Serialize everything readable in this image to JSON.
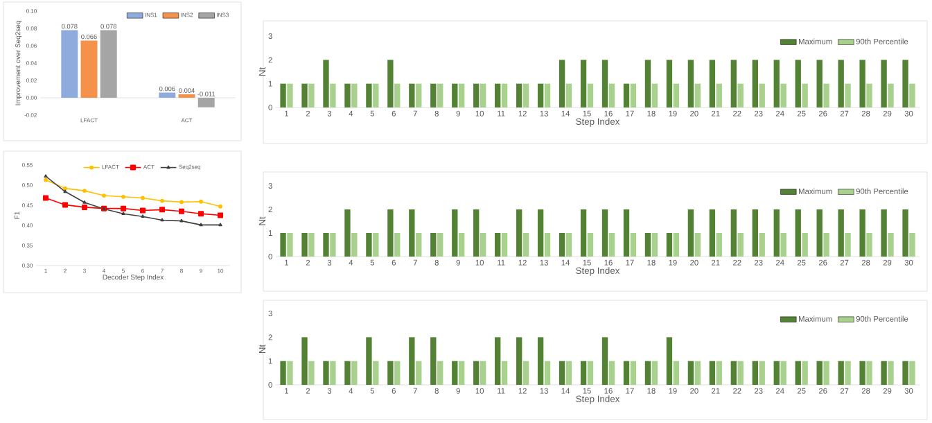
{
  "chart_data": [
    {
      "type": "bar",
      "ylabel": "Improvement over Seq2seq",
      "categories": [
        "LFACT",
        "ACT"
      ],
      "series": [
        {
          "name": "INS1",
          "color": "#8faadc",
          "values": [
            0.078,
            0.006
          ]
        },
        {
          "name": "INS2",
          "color": "#f4914a",
          "values": [
            0.066,
            0.004
          ]
        },
        {
          "name": "INS3",
          "color": "#a5a5a5",
          "values": [
            0.078,
            -0.011
          ]
        }
      ],
      "ylim": [
        -0.02,
        0.1
      ],
      "yticks": [
        {
          "value": -0.02,
          "label": "-0.02"
        },
        {
          "value": 0,
          "label": "0.00"
        },
        {
          "value": 0.02,
          "label": "0.02"
        },
        {
          "value": 0.04,
          "label": "0.04"
        },
        {
          "value": 0.06,
          "label": "0.06"
        },
        {
          "value": 0.08,
          "label": "0.08"
        },
        {
          "value": 0.1,
          "label": "0.10"
        }
      ],
      "data_labels": true,
      "legend": "top right"
    },
    {
      "type": "line",
      "xlabel": "Decoder Step Index",
      "ylabel": "F1",
      "categories": [
        "1",
        "2",
        "3",
        "4",
        "5",
        "6",
        "7",
        "8",
        "9",
        "10"
      ],
      "series": [
        {
          "name": "LFACT",
          "color": "#ffc000",
          "marker": "circle",
          "values": [
            0.513,
            0.492,
            0.486,
            0.474,
            0.471,
            0.468,
            0.461,
            0.458,
            0.459,
            0.447
          ]
        },
        {
          "name": "ACT",
          "color": "#ff0000",
          "marker": "square",
          "values": [
            0.468,
            0.451,
            0.445,
            0.442,
            0.442,
            0.437,
            0.439,
            0.435,
            0.429,
            0.425
          ]
        },
        {
          "name": "Seq2seq",
          "color": "#404040",
          "marker": "triangle",
          "values": [
            0.522,
            0.484,
            0.457,
            0.441,
            0.429,
            0.422,
            0.413,
            0.411,
            0.401,
            0.401
          ]
        }
      ],
      "ylim": [
        0.3,
        0.55
      ],
      "yticks": [
        {
          "value": 0.3,
          "label": "0.30"
        },
        {
          "value": 0.35,
          "label": "0.35"
        },
        {
          "value": 0.4,
          "label": "0.40"
        },
        {
          "value": 0.45,
          "label": "0.45"
        },
        {
          "value": 0.5,
          "label": "0.50"
        },
        {
          "value": 0.55,
          "label": "0.55"
        }
      ],
      "legend": "top"
    },
    {
      "type": "bar",
      "xlabel": "Step Index",
      "ylabel": "Nt",
      "categories": [
        "1",
        "2",
        "3",
        "4",
        "5",
        "6",
        "7",
        "8",
        "9",
        "10",
        "11",
        "12",
        "13",
        "14",
        "15",
        "16",
        "17",
        "18",
        "19",
        "20",
        "21",
        "22",
        "23",
        "24",
        "25",
        "26",
        "27",
        "28",
        "29",
        "30"
      ],
      "series": [
        {
          "name": "Maximum",
          "color": "#548235",
          "values": [
            1,
            1,
            2,
            1,
            1,
            2,
            1,
            1,
            1,
            1,
            1,
            1,
            1,
            2,
            2,
            2,
            1,
            2,
            2,
            2,
            2,
            2,
            2,
            2,
            2,
            2,
            2,
            2,
            2,
            2
          ]
        },
        {
          "name": "90th Percentile",
          "color": "#a9d18e",
          "values": [
            1,
            1,
            1,
            1,
            1,
            1,
            1,
            1,
            1,
            1,
            1,
            1,
            1,
            1,
            1,
            1,
            1,
            1,
            1,
            1,
            1,
            1,
            1,
            1,
            1,
            1,
            1,
            1,
            1,
            1
          ]
        }
      ],
      "ylim": [
        0,
        3
      ],
      "yticks": [
        0,
        1,
        2,
        3
      ],
      "legend": "top right"
    },
    {
      "type": "bar",
      "xlabel": "Step Index",
      "ylabel": "Nt",
      "categories": [
        "1",
        "2",
        "3",
        "4",
        "5",
        "6",
        "7",
        "8",
        "9",
        "10",
        "11",
        "12",
        "13",
        "14",
        "15",
        "16",
        "17",
        "18",
        "19",
        "20",
        "21",
        "22",
        "23",
        "24",
        "25",
        "26",
        "27",
        "28",
        "29",
        "30"
      ],
      "series": [
        {
          "name": "Maximum",
          "color": "#548235",
          "values": [
            1,
            1,
            1,
            2,
            1,
            2,
            2,
            1,
            2,
            2,
            1,
            2,
            2,
            1,
            2,
            2,
            2,
            1,
            1,
            2,
            2,
            2,
            2,
            2,
            2,
            2,
            2,
            2,
            2,
            2
          ]
        },
        {
          "name": "90th Percentile",
          "color": "#a9d18e",
          "values": [
            1,
            1,
            1,
            1,
            1,
            1,
            1,
            1,
            1,
            1,
            1,
            1,
            1,
            1,
            1,
            1,
            1,
            1,
            1,
            1,
            1,
            1,
            1,
            1,
            1,
            1,
            1,
            1,
            1,
            1
          ]
        }
      ],
      "ylim": [
        0,
        3
      ],
      "yticks": [
        0,
        1,
        2,
        3
      ],
      "legend": "top right"
    },
    {
      "type": "bar",
      "xlabel": "Step Index",
      "ylabel": "Nt",
      "categories": [
        "1",
        "2",
        "3",
        "4",
        "5",
        "6",
        "7",
        "8",
        "9",
        "10",
        "11",
        "12",
        "13",
        "14",
        "15",
        "16",
        "17",
        "18",
        "19",
        "20",
        "21",
        "22",
        "23",
        "24",
        "25",
        "26",
        "27",
        "28",
        "29",
        "30"
      ],
      "series": [
        {
          "name": "Maximum",
          "color": "#548235",
          "values": [
            1,
            2,
            1,
            1,
            2,
            1,
            2,
            2,
            1,
            1,
            2,
            2,
            2,
            1,
            1,
            2,
            1,
            1,
            2,
            1,
            1,
            1,
            1,
            1,
            1,
            1,
            1,
            1,
            1,
            1
          ]
        },
        {
          "name": "90th Percentile",
          "color": "#a9d18e",
          "values": [
            1,
            1,
            1,
            1,
            1,
            1,
            1,
            1,
            1,
            1,
            1,
            1,
            1,
            1,
            1,
            1,
            1,
            1,
            1,
            1,
            1,
            1,
            1,
            1,
            1,
            1,
            1,
            1,
            1,
            1
          ]
        }
      ],
      "ylim": [
        0,
        3
      ],
      "yticks": [
        0,
        1,
        2,
        3
      ],
      "legend": "top right"
    }
  ]
}
